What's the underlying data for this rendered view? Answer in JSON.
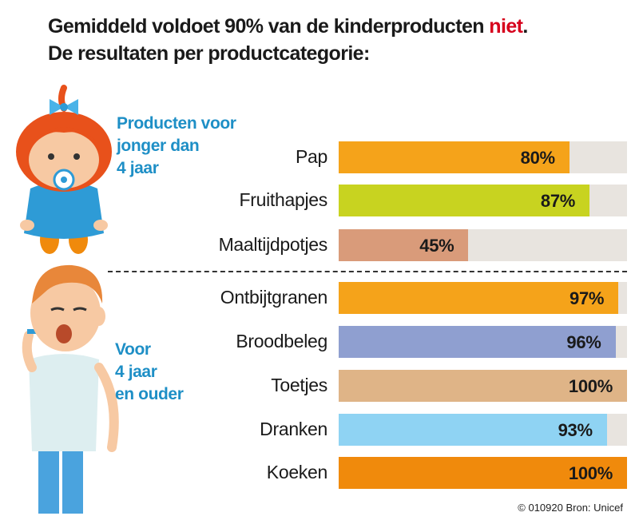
{
  "title": {
    "line1_prefix": "Gemiddeld voldoet 90% van de kinderproducten ",
    "line1_highlight": "niet",
    "line1_suffix": ".",
    "line2": "De resultaten per productcategorie:"
  },
  "groups": {
    "young": [
      "Producten voor",
      "jonger dan",
      "4 jaar"
    ],
    "older": [
      "Voor",
      "4 jaar",
      "en ouder"
    ]
  },
  "source": "© 010920 Bron: Unicef",
  "colors": {
    "highlight": "#d6001c",
    "group_label": "#1e8fc6",
    "track": "#e8e4df"
  },
  "chart_data": {
    "type": "bar",
    "orientation": "horizontal",
    "categories": [
      "Pap",
      "Fruithapjes",
      "Maaltijdpotjes",
      "Ontbijtgranen",
      "Broodbeleg",
      "Toetjes",
      "Dranken",
      "Koeken"
    ],
    "values": [
      80,
      87,
      45,
      97,
      96,
      100,
      93,
      100
    ],
    "value_labels": [
      "80%",
      "87%",
      "45%",
      "97%",
      "96%",
      "100%",
      "93%",
      "100%"
    ],
    "bar_colors": [
      "#f5a31a",
      "#c8d320",
      "#d99b7a",
      "#f5a31a",
      "#8f9fd0",
      "#dfb487",
      "#8fd3f3",
      "#f08a0c"
    ],
    "group_of_category": [
      "young",
      "young",
      "young",
      "older",
      "older",
      "older",
      "older",
      "older"
    ],
    "xlim": [
      0,
      100
    ]
  }
}
